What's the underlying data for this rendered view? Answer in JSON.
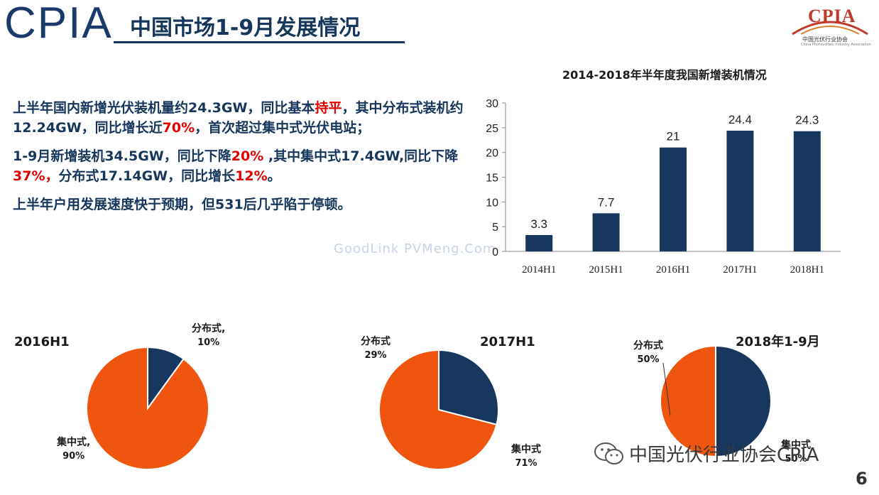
{
  "header": {
    "logo_text": "CPIA",
    "title": "中国市场1-9月发展情况",
    "right_logo_word": "CPIA",
    "right_logo_sub": "中国光伏行业协会",
    "right_logo_sub_en": "China Photovoltaic Industry Association"
  },
  "bullets": [
    {
      "parts": [
        {
          "text": "上半年国内新增光伏装机量约24.3GW，同比基本",
          "red": false
        },
        {
          "text": "持平",
          "red": true
        },
        {
          "text": "，其中分布式装机约12.24GW，同比增长近",
          "red": false
        },
        {
          "text": "70%",
          "red": true
        },
        {
          "text": "，首次超过集中式光伏电站；",
          "red": false
        }
      ]
    },
    {
      "parts": [
        {
          "text": "1-9月新增装机34.5GW，同比下降",
          "red": false
        },
        {
          "text": "20%",
          "red": true
        },
        {
          "text": " ,其中集中式17.4GW,同比下降",
          "red": false
        },
        {
          "text": "37%，",
          "red": true
        },
        {
          "text": "分布式17.14GW，同比增长",
          "red": false
        },
        {
          "text": "12%",
          "red": true
        },
        {
          "text": "。",
          "red": false
        }
      ]
    },
    {
      "parts": [
        {
          "text": "上半年户用发展速度快于预期，但531后几乎陷于停顿。",
          "red": false
        }
      ]
    }
  ],
  "watermark": "GoodLink  PVMeng.Com",
  "chart_data": [
    {
      "type": "bar",
      "title": "2014-2018年半年度我国新增装机情况",
      "categories": [
        "2014H1",
        "2015H1",
        "2016H1",
        "2017H1",
        "2018H1"
      ],
      "values": [
        3.3,
        7.7,
        21,
        24.4,
        24.3
      ],
      "ylim": [
        0,
        30
      ],
      "yticks": [
        0,
        5,
        10,
        15,
        20,
        25,
        30
      ],
      "xlabel": "",
      "ylabel": "",
      "color": "#17375e",
      "grid": false
    },
    {
      "type": "pie",
      "title": "2016H1",
      "slices": [
        {
          "name": "分布式,",
          "label": "10%",
          "value": 10,
          "color": "#17375e"
        },
        {
          "name": "集中式,",
          "label": "90%",
          "value": 90,
          "color": "#f0550f"
        }
      ]
    },
    {
      "type": "pie",
      "title": "2017H1",
      "slices": [
        {
          "name": "分布式",
          "label": "29%",
          "value": 29,
          "color": "#17375e"
        },
        {
          "name": "集中式",
          "label": "71%",
          "value": 71,
          "color": "#f0550f"
        }
      ]
    },
    {
      "type": "pie",
      "title": "2018年1-9月",
      "slices": [
        {
          "name": "分布式",
          "label": "50%",
          "value": 50,
          "color": "#17375e"
        },
        {
          "name": "集中式",
          "label": "50%",
          "value": 50,
          "color": "#f0550f"
        }
      ]
    }
  ],
  "footer": {
    "brand": "中国光伏行业协会CPIA",
    "page_number": "6"
  }
}
